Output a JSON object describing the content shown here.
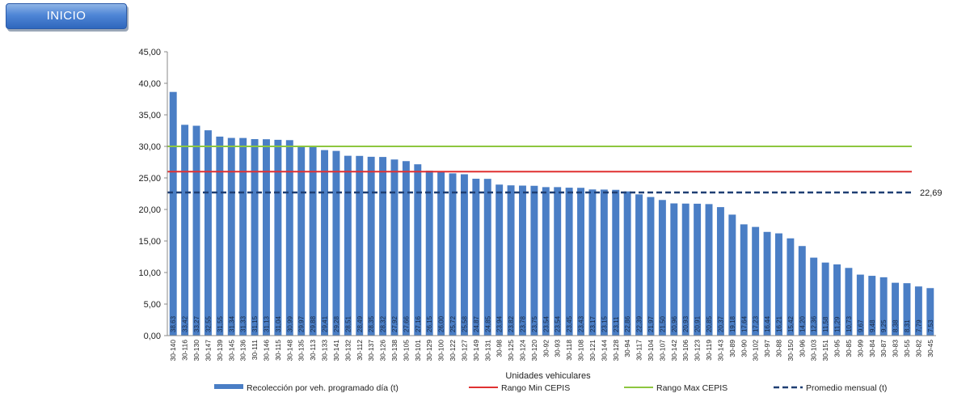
{
  "header": {
    "inicio_label": "INICIO"
  },
  "chart_data": {
    "type": "bar",
    "xlabel": "Unidades vehiculares",
    "ylabel": "",
    "ylim": [
      0,
      45
    ],
    "yticks": [
      "0,00",
      "5,00",
      "10,00",
      "15,00",
      "20,00",
      "25,00",
      "30,00",
      "35,00",
      "40,00",
      "45,00"
    ],
    "grid": false,
    "legend_position": "bottom",
    "categories": [
      "30-140",
      "30-116",
      "30-130",
      "30-147",
      "30-139",
      "30-145",
      "30-136",
      "30-111",
      "30-146",
      "30-115",
      "30-148",
      "30-135",
      "30-113",
      "30-133",
      "30-141",
      "30-132",
      "30-112",
      "30-137",
      "30-126",
      "30-138",
      "30-105",
      "30-101",
      "30-129",
      "30-100",
      "30-122",
      "30-127",
      "30-149",
      "30-131",
      "30-98",
      "30-125",
      "30-124",
      "30-120",
      "30-92",
      "30-93",
      "30-118",
      "30-108",
      "30-121",
      "30-144",
      "30-128",
      "30-94",
      "30-117",
      "30-104",
      "30-107",
      "30-142",
      "30-106",
      "30-123",
      "30-119",
      "30-143",
      "30-89",
      "30-90",
      "30-102",
      "30-97",
      "30-88",
      "30-150",
      "30-96",
      "30-103",
      "30-151",
      "30-95",
      "30-85",
      "30-99",
      "30-84",
      "30-87",
      "30-83",
      "30-55",
      "30-82",
      "30-45"
    ],
    "data_labels": [
      "38,63",
      "33,42",
      "33,27",
      "32,55",
      "31,55",
      "31,34",
      "31,33",
      "31,15",
      "31,13",
      "31,04",
      "30,99",
      "29,97",
      "29,88",
      "29,41",
      "29,28",
      "28,51",
      "28,49",
      "28,35",
      "28,32",
      "27,92",
      "27,66",
      "27,16",
      "26,15",
      "26,00",
      "25,72",
      "25,58",
      "24,87",
      "24,85",
      "23,94",
      "23,82",
      "23,78",
      "23,75",
      "23,54",
      "23,54",
      "23,45",
      "23,43",
      "23,17",
      "23,15",
      "23,11",
      "22,86",
      "22,39",
      "21,97",
      "21,50",
      "20,96",
      "20,93",
      "20,91",
      "20,85",
      "20,37",
      "19,18",
      "17,64",
      "17,23",
      "16,44",
      "16,21",
      "15,42",
      "14,20",
      "12,36",
      "11,58",
      "11,29",
      "10,73",
      "9,67",
      "9,48",
      "9,25",
      "8,38",
      "8,31",
      "7,79",
      "7,53"
    ],
    "series": [
      {
        "name": "Recolección por veh. programado día (t)",
        "kind": "bar",
        "color": "#4a7ec5",
        "values": [
          38.63,
          33.42,
          33.27,
          32.55,
          31.55,
          31.34,
          31.33,
          31.15,
          31.13,
          31.04,
          30.99,
          29.97,
          29.88,
          29.41,
          29.28,
          28.51,
          28.49,
          28.35,
          28.32,
          27.92,
          27.66,
          27.16,
          26.15,
          26.0,
          25.72,
          25.58,
          24.87,
          24.85,
          23.94,
          23.82,
          23.78,
          23.75,
          23.54,
          23.54,
          23.45,
          23.43,
          23.17,
          23.15,
          23.11,
          22.86,
          22.39,
          21.97,
          21.5,
          20.96,
          20.93,
          20.91,
          20.85,
          20.37,
          19.18,
          17.64,
          17.23,
          16.44,
          16.21,
          15.42,
          14.2,
          12.36,
          11.58,
          11.29,
          10.73,
          9.67,
          9.48,
          9.25,
          8.38,
          8.31,
          7.79,
          7.53
        ]
      },
      {
        "name": "Rango Min CEPIS",
        "kind": "line",
        "color": "#e03131",
        "value": 26
      },
      {
        "name": "Rango Max CEPIS",
        "kind": "line",
        "color": "#8dc63f",
        "value": 30
      },
      {
        "name": "Promedio mensual (t)",
        "kind": "dashed",
        "color": "#1f3f73",
        "value": 22.69,
        "label": "22,69"
      }
    ]
  }
}
